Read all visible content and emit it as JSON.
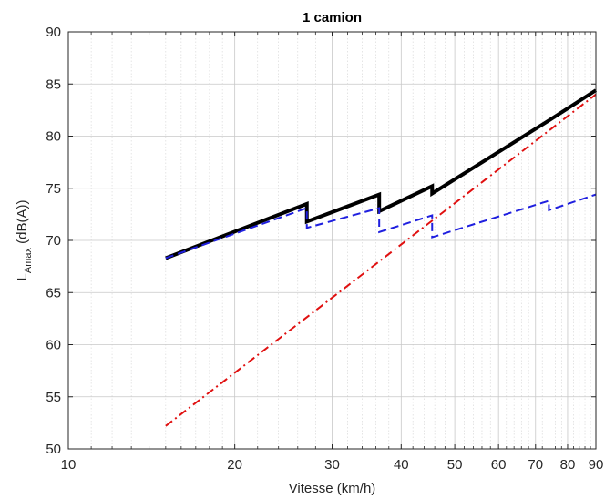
{
  "chart_data": {
    "type": "line",
    "title": "1 camion",
    "xlabel": "Vitesse (km/h)",
    "ylabel_main": "L",
    "ylabel_sub": "Amax",
    "ylabel_rest": " (dB(A))",
    "xscale": "log",
    "xlim": [
      10,
      90
    ],
    "ylim": [
      50,
      90
    ],
    "grid": true,
    "x_ticks": [
      10,
      20,
      30,
      40,
      50,
      60,
      70,
      80,
      90
    ],
    "x_tick_labels": [
      "10",
      "20",
      "30",
      "40",
      "50",
      "60",
      "70",
      "80",
      "90"
    ],
    "y_ticks": [
      50,
      55,
      60,
      65,
      70,
      75,
      80,
      85,
      90
    ],
    "y_tick_labels": [
      "50",
      "55",
      "60",
      "65",
      "70",
      "75",
      "80",
      "85",
      "90"
    ],
    "series": [
      {
        "color": "#000000",
        "style": "solid",
        "width": "thick",
        "x": [
          15,
          27,
          27,
          36.5,
          36.5,
          45.5,
          45.5,
          74,
          90
        ],
        "y": [
          68.3,
          73.5,
          71.8,
          74.4,
          72.8,
          75.2,
          74.5,
          81.5,
          84.4
        ]
      },
      {
        "color": "#1f1fdf",
        "style": "dashed",
        "width": "normal",
        "x": [
          15,
          27,
          27,
          36.5,
          36.5,
          45.5,
          45.5,
          74,
          74,
          90
        ],
        "y": [
          68.3,
          73.1,
          71.2,
          73.1,
          70.8,
          72.4,
          70.3,
          73.8,
          72.9,
          74.4
        ]
      },
      {
        "color": "#e01010",
        "style": "dashdot",
        "width": "normal",
        "x": [
          15,
          90
        ],
        "y": [
          52.2,
          84.0
        ]
      }
    ]
  }
}
